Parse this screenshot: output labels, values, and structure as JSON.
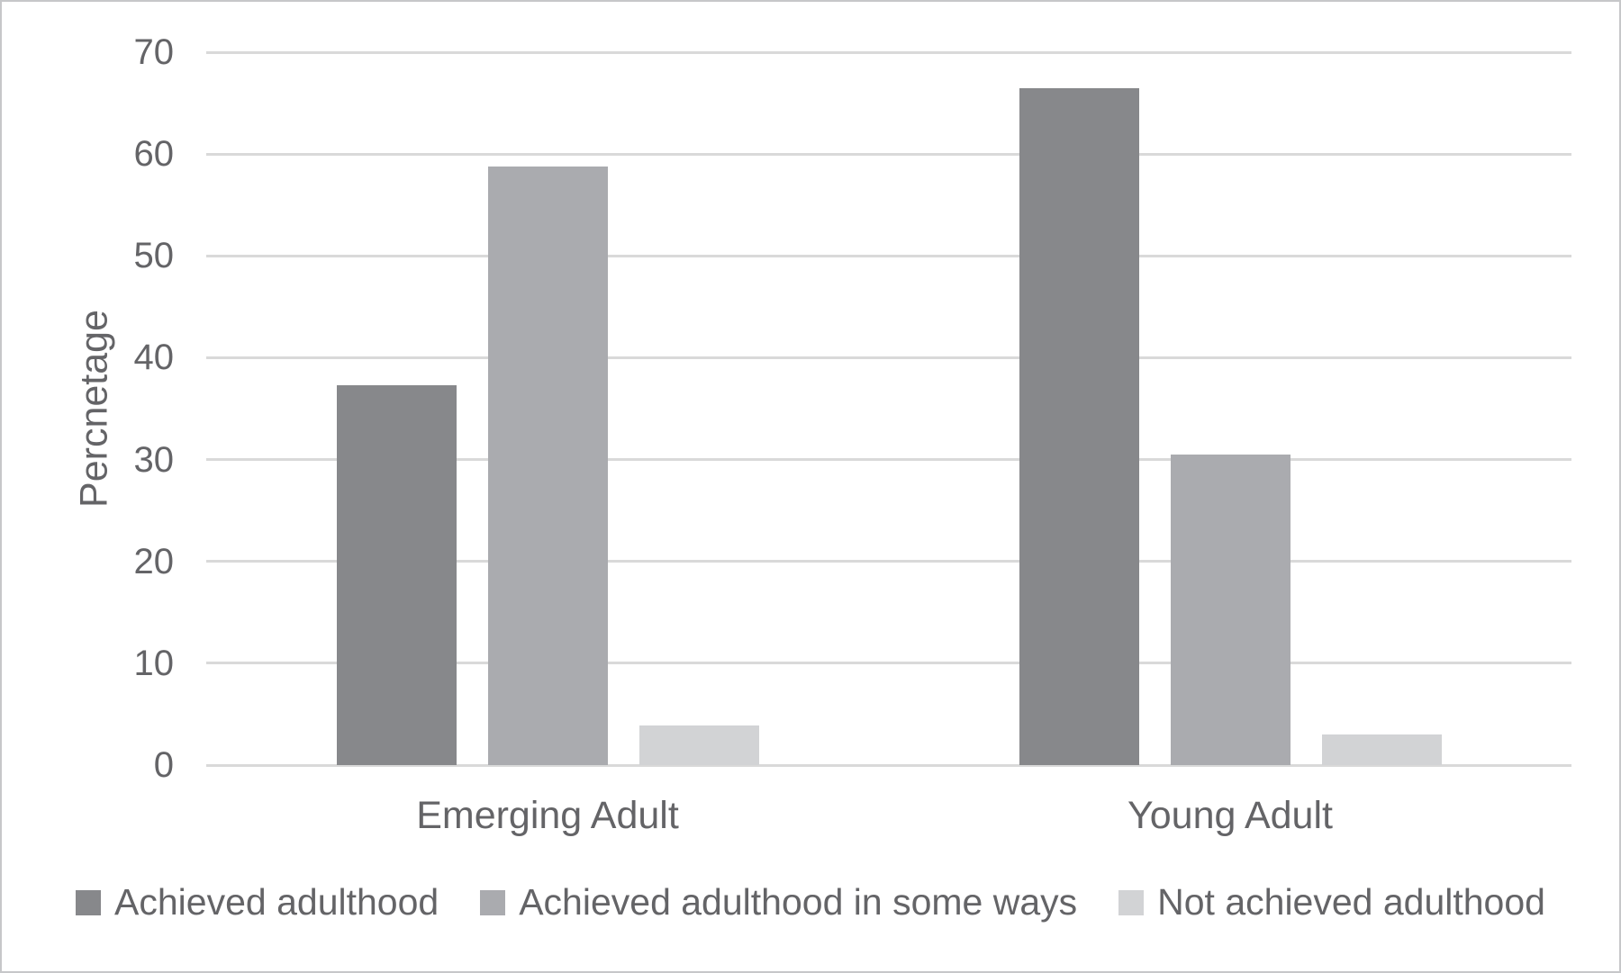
{
  "figure": {
    "background": "#ffffff",
    "border_color": "#c6c7c9",
    "text_color": "#646467",
    "grid_color": "#d9d9d9"
  },
  "chart_data": {
    "type": "bar",
    "title": "",
    "categories": [
      "Emerging Adult",
      "Young Adult"
    ],
    "series": [
      {
        "name": "Achieved adulthood",
        "color": "#87888b",
        "values": [
          37.3,
          66.5
        ]
      },
      {
        "name": "Achieved adulthood in some ways",
        "color": "#aaabaf",
        "values": [
          58.8,
          30.5
        ]
      },
      {
        "name": "Not achieved adulthood",
        "color": "#d2d3d5",
        "values": [
          3.9,
          3.0
        ]
      }
    ],
    "xlabel": "",
    "ylabel": "Percnetage",
    "ylim": [
      0,
      70
    ],
    "yticks": [
      0,
      10,
      20,
      30,
      40,
      50,
      60,
      70
    ],
    "grid": true,
    "legend_position": "bottom"
  }
}
